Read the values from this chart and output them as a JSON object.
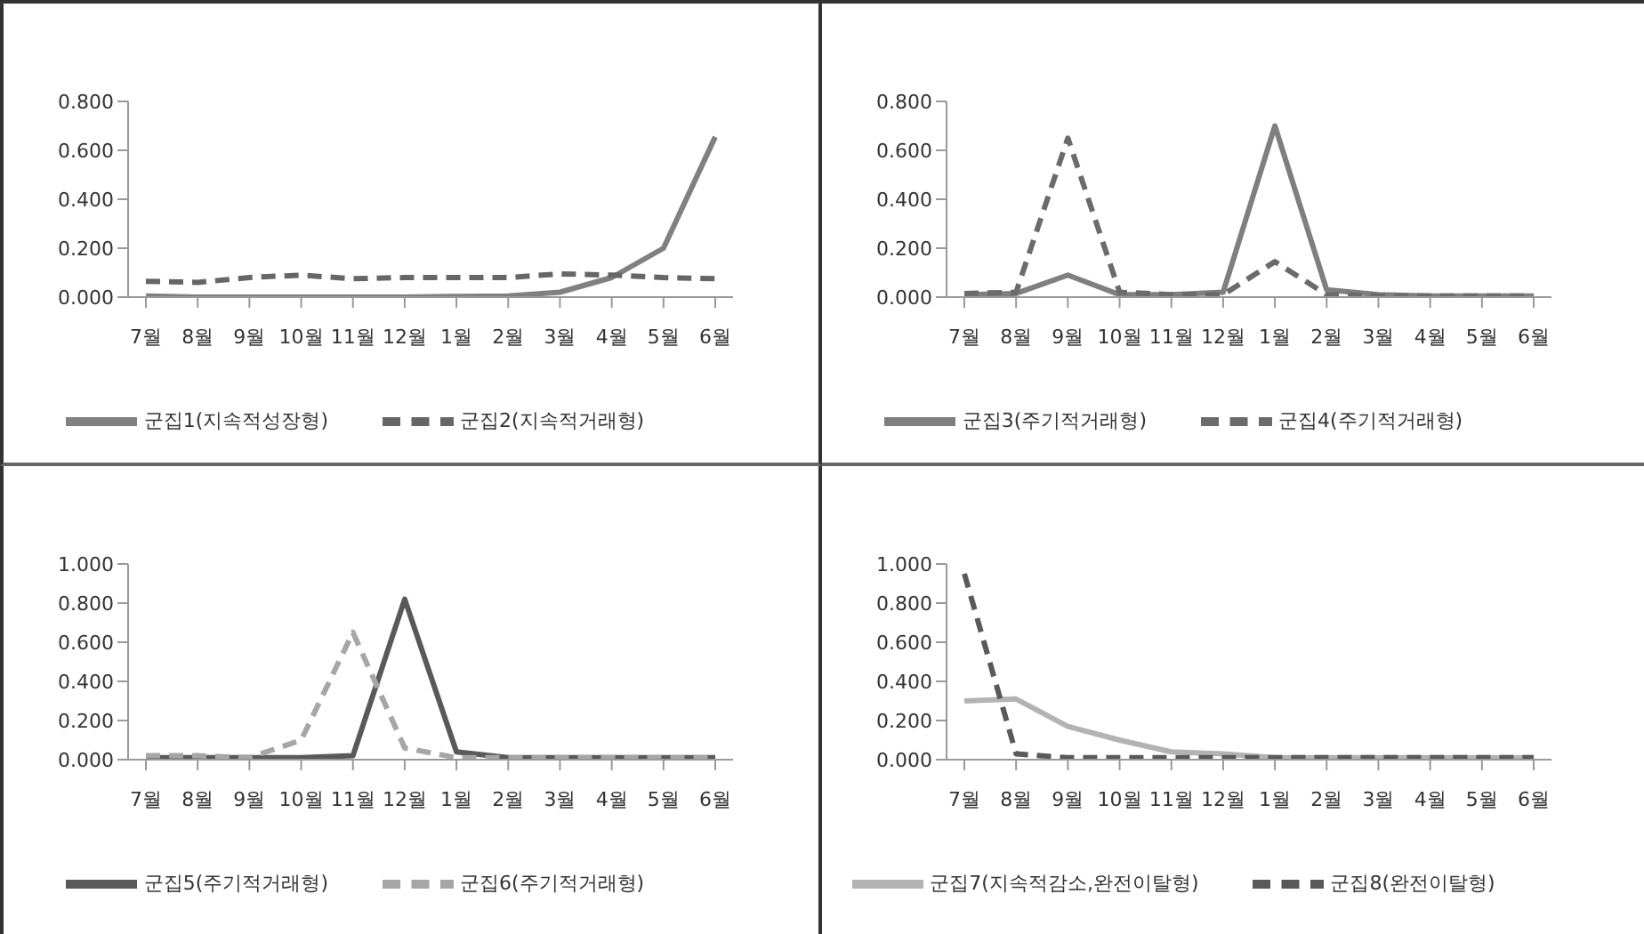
{
  "chart_data": [
    {
      "type": "line",
      "categories": [
        "7월",
        "8월",
        "9월",
        "10월",
        "11월",
        "12월",
        "1월",
        "2월",
        "3월",
        "4월",
        "5월",
        "6월"
      ],
      "ylim": [
        0,
        0.8
      ],
      "yticks": [
        {
          "value": 0,
          "label": "0.000"
        },
        {
          "value": 0.2,
          "label": "0.200"
        },
        {
          "value": 0.4,
          "label": "0.400"
        },
        {
          "value": 0.6,
          "label": "0.600"
        },
        {
          "value": 0.8,
          "label": "0.800"
        }
      ],
      "legend": "bottom",
      "marker": "none",
      "series": [
        {
          "name": "군집1(지속적성장형)",
          "color": "#808080",
          "line_style": "solid",
          "values": [
            0.005,
            0,
            0,
            0,
            0,
            0,
            0.003,
            0.005,
            0.02,
            0.08,
            0.2,
            0.655
          ]
        },
        {
          "name": "군집2(지속적거래형)",
          "color": "#666666",
          "line_style": "dashed",
          "values": [
            0.065,
            0.06,
            0.08,
            0.09,
            0.075,
            0.08,
            0.08,
            0.08,
            0.095,
            0.09,
            0.08,
            0.075
          ]
        }
      ]
    },
    {
      "type": "line",
      "categories": [
        "7월",
        "8월",
        "9월",
        "10월",
        "11월",
        "12월",
        "1월",
        "2월",
        "3월",
        "4월",
        "5월",
        "6월"
      ],
      "ylim": [
        0,
        0.8
      ],
      "yticks": [
        {
          "value": 0,
          "label": "0.000"
        },
        {
          "value": 0.2,
          "label": "0.200"
        },
        {
          "value": 0.4,
          "label": "0.400"
        },
        {
          "value": 0.6,
          "label": "0.600"
        },
        {
          "value": 0.8,
          "label": "0.800"
        }
      ],
      "legend": "bottom",
      "marker": "none",
      "series": [
        {
          "name": "군집3(주기적거래형)",
          "color": "#7f7f7f",
          "line_style": "solid",
          "values": [
            0.01,
            0.015,
            0.09,
            0.01,
            0.01,
            0.02,
            0.7,
            0.03,
            0.01,
            0.005,
            0.005,
            0.005
          ]
        },
        {
          "name": "군집4(주기적거래형)",
          "color": "#6b6b6b",
          "line_style": "dashed",
          "values": [
            0.015,
            0.02,
            0.65,
            0.02,
            0.01,
            0.01,
            0.145,
            0.01,
            0.005,
            0.005,
            0.005,
            0.005
          ]
        }
      ]
    },
    {
      "type": "line",
      "categories": [
        "7월",
        "8월",
        "9월",
        "10월",
        "11월",
        "12월",
        "1월",
        "2월",
        "3월",
        "4월",
        "5월",
        "6월"
      ],
      "ylim": [
        0,
        1
      ],
      "yticks": [
        {
          "value": 0,
          "label": "0.000"
        },
        {
          "value": 0.2,
          "label": "0.200"
        },
        {
          "value": 0.4,
          "label": "0.400"
        },
        {
          "value": 0.6,
          "label": "0.600"
        },
        {
          "value": 0.8,
          "label": "0.800"
        },
        {
          "value": 1,
          "label": "1.000"
        }
      ],
      "legend": "bottom",
      "marker": "none",
      "series": [
        {
          "name": "군집5(주기적거래형)",
          "color": "#595959",
          "line_style": "solid",
          "values": [
            0.01,
            0.01,
            0.01,
            0.01,
            0.02,
            0.82,
            0.04,
            0.01,
            0.01,
            0.01,
            0.01,
            0.01
          ]
        },
        {
          "name": "군집6(주기적거래형)",
          "color": "#a6a6a6",
          "line_style": "dashed",
          "values": [
            0.02,
            0.02,
            0.01,
            0.1,
            0.65,
            0.06,
            0.01,
            0.01,
            0.01,
            0.01,
            0.01,
            0.01
          ]
        }
      ]
    },
    {
      "type": "line",
      "categories": [
        "7월",
        "8월",
        "9월",
        "10월",
        "11월",
        "12월",
        "1월",
        "2월",
        "3월",
        "4월",
        "5월",
        "6월"
      ],
      "ylim": [
        0,
        1
      ],
      "yticks": [
        {
          "value": 0,
          "label": "0.000"
        },
        {
          "value": 0.2,
          "label": "0.200"
        },
        {
          "value": 0.4,
          "label": "0.400"
        },
        {
          "value": 0.6,
          "label": "0.600"
        },
        {
          "value": 0.8,
          "label": "0.800"
        },
        {
          "value": 1,
          "label": "1.000"
        }
      ],
      "legend": "bottom",
      "marker": "none",
      "series": [
        {
          "name": "군집7(지속적감소,완전이탈형)",
          "color": "#b3b3b3",
          "line_style": "solid",
          "values": [
            0.3,
            0.31,
            0.17,
            0.1,
            0.04,
            0.03,
            0.01,
            0.01,
            0.01,
            0.01,
            0.01,
            0.01
          ]
        },
        {
          "name": "군집8(완전이탈형)",
          "color": "#595959",
          "line_style": "dashed",
          "values": [
            0.95,
            0.03,
            0.01,
            0.01,
            0.01,
            0.01,
            0.01,
            0.01,
            0.01,
            0.01,
            0.01,
            0.01
          ]
        }
      ]
    }
  ]
}
